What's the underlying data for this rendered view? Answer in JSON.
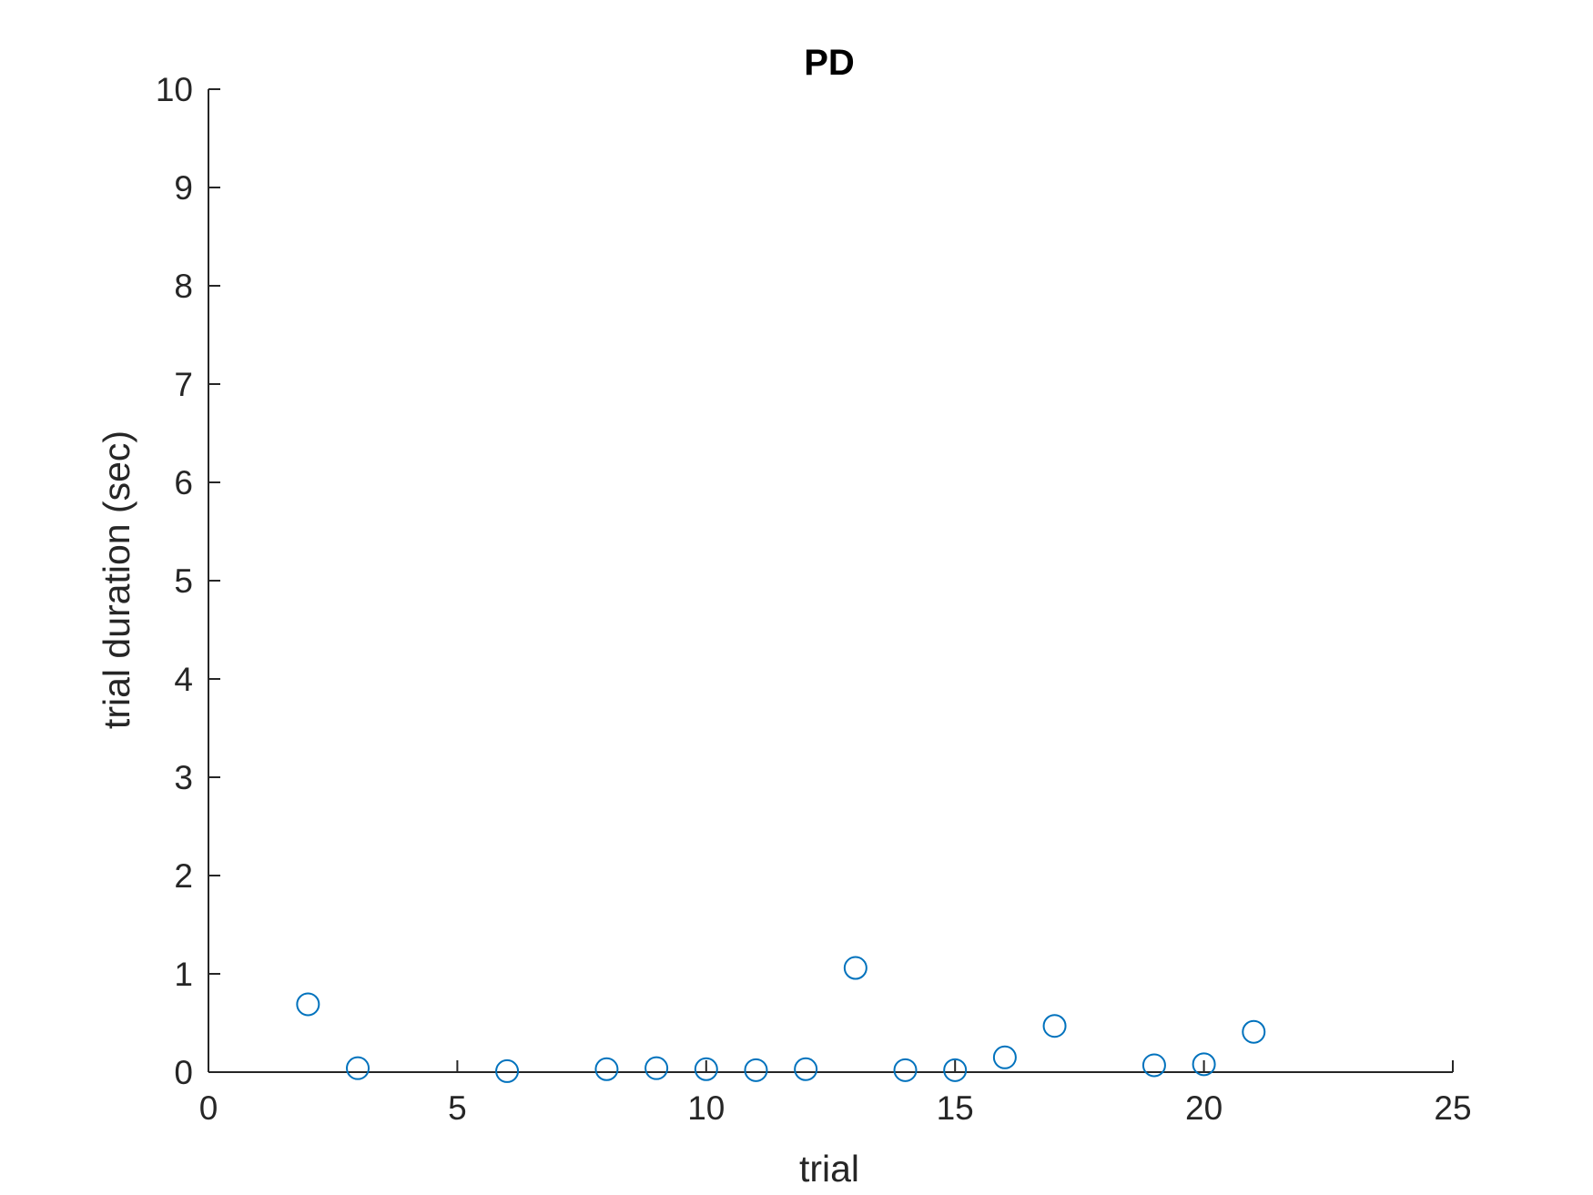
{
  "chart_data": {
    "type": "scatter",
    "title": "PD",
    "xlabel": "trial",
    "ylabel": "trial duration (sec)",
    "xlim": [
      0,
      25
    ],
    "ylim": [
      0,
      10
    ],
    "xticks": [
      0,
      5,
      10,
      15,
      20,
      25
    ],
    "yticks": [
      0,
      1,
      2,
      3,
      4,
      5,
      6,
      7,
      8,
      9,
      10
    ],
    "xtick_labels": [
      "0",
      "5",
      "10",
      "15",
      "20",
      "25"
    ],
    "ytick_labels": [
      "0",
      "1",
      "2",
      "3",
      "4",
      "5",
      "6",
      "7",
      "8",
      "9",
      "10"
    ],
    "grid": false,
    "marker_color": "#0072BD",
    "series": [
      {
        "marker": "circle",
        "x": [
          2,
          3,
          6,
          8,
          9,
          10,
          11,
          12,
          13,
          14,
          15,
          16,
          17,
          19,
          20,
          21
        ],
        "y": [
          0.69,
          0.04,
          0.01,
          0.03,
          0.04,
          0.03,
          0.02,
          0.03,
          1.06,
          0.02,
          0.02,
          0.15,
          0.47,
          0.07,
          0.08,
          0.41
        ]
      }
    ]
  }
}
